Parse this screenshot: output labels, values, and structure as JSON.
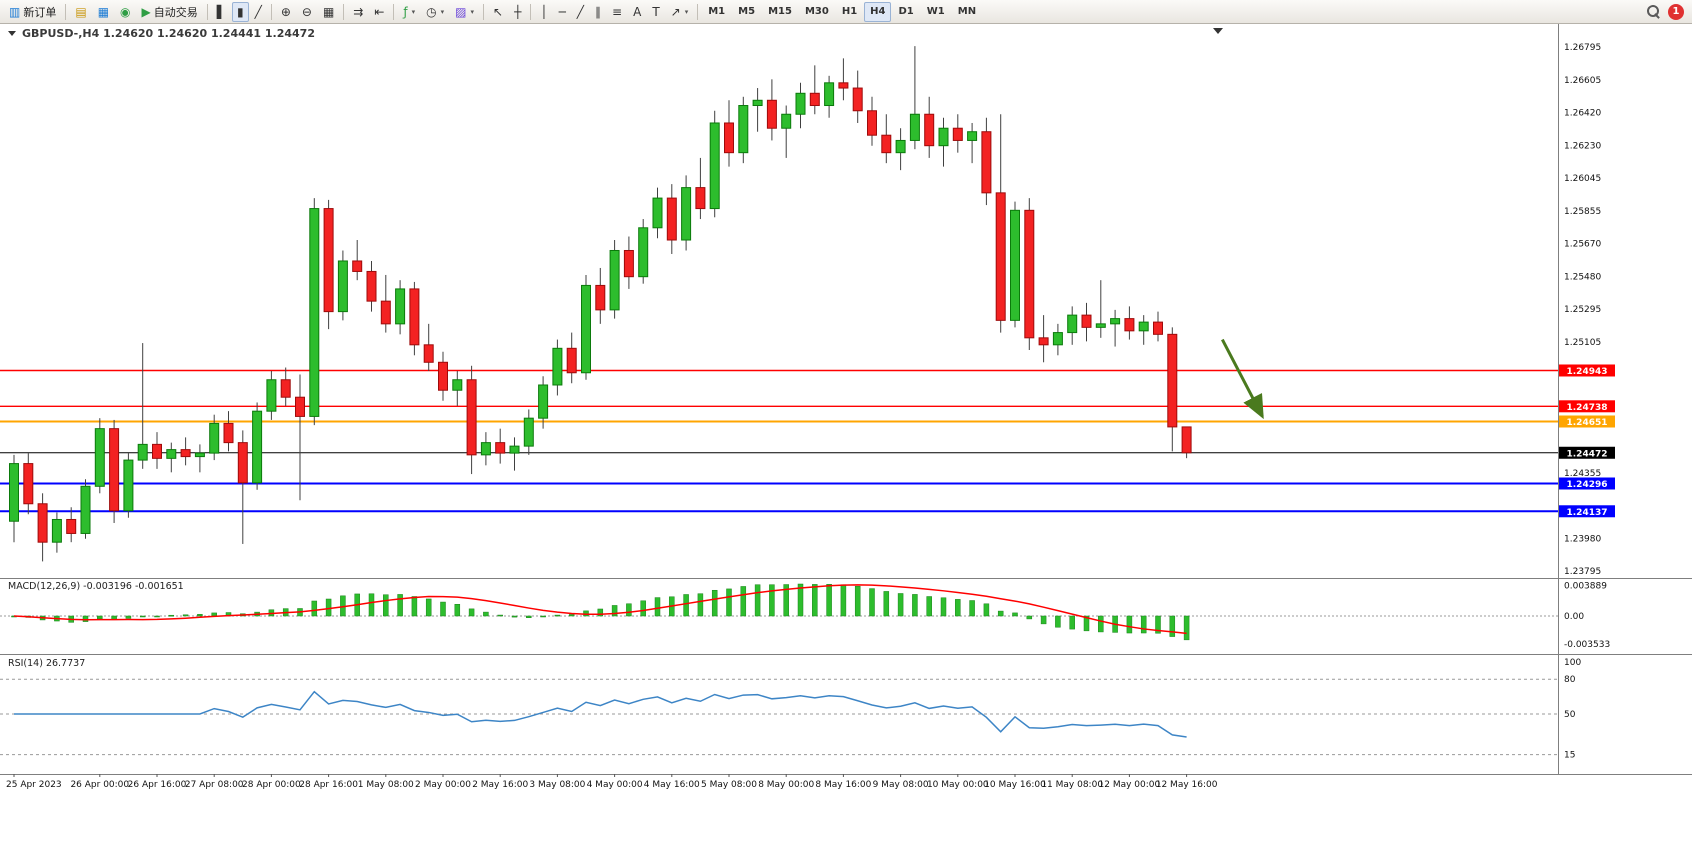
{
  "colors": {
    "bull_fill": "#2dbd2d",
    "bull_stroke": "#0b7a0b",
    "bear_fill": "#f32222",
    "bear_stroke": "#9e0b0b",
    "wick": "#404040",
    "macd_hist": "#2dbd2d",
    "macd_hist_stroke": "#188318",
    "macd_signal": "#ff0000",
    "rsi_line": "#3d85c6",
    "arrow_annotation": "#4a7a1e",
    "axis_text": "#111111",
    "separator": "#7f7f7f"
  },
  "toolbar": {
    "buttons": [
      {
        "name": "new-order",
        "glyph": "▥",
        "glyph_color": "#1a7ad4",
        "label": "新订单"
      },
      {
        "sep": true
      },
      {
        "name": "market-watch",
        "glyph": "▤",
        "glyph_color": "#c8950a"
      },
      {
        "name": "data-window",
        "glyph": "▦",
        "glyph_color": "#1a7ad4"
      },
      {
        "name": "navigator",
        "glyph": "◉",
        "glyph_color": "#2f9e44"
      },
      {
        "name": "autotrading",
        "glyph": "▶",
        "glyph_color": "#2f9e44",
        "label": "自动交易"
      },
      {
        "sep": true
      },
      {
        "name": "bar-chart",
        "glyph": "▌",
        "glyph_color": "#333333"
      },
      {
        "name": "candlestick-chart",
        "glyph": "▮",
        "glyph_color": "#333333",
        "active": true
      },
      {
        "name": "line-chart",
        "glyph": "╱",
        "glyph_color": "#333333"
      },
      {
        "sep": true
      },
      {
        "name": "zoom-in",
        "glyph": "⊕",
        "glyph_color": "#333333"
      },
      {
        "name": "zoom-out",
        "glyph": "⊖",
        "glyph_color": "#333333"
      },
      {
        "name": "tile-windows",
        "glyph": "▦",
        "glyph_color": "#333333"
      },
      {
        "sep": true
      },
      {
        "name": "auto-scroll",
        "glyph": "⇉",
        "glyph_color": "#333333"
      },
      {
        "name": "chart-shift",
        "glyph": "⇤",
        "glyph_color": "#333333"
      },
      {
        "sep": true
      },
      {
        "name": "indicators",
        "glyph": "ƒ",
        "glyph_color": "#2f9e44",
        "dropdown": true
      },
      {
        "name": "periods",
        "glyph": "◷",
        "glyph_color": "#333333",
        "dropdown": true
      },
      {
        "name": "templates",
        "glyph": "▨",
        "glyph_color": "#6741d9",
        "dropdown": true
      },
      {
        "sep": true
      },
      {
        "name": "cursor",
        "glyph": "↖",
        "glyph_color": "#333333"
      },
      {
        "name": "crosshair",
        "glyph": "┼",
        "glyph_color": "#333333"
      },
      {
        "sep": true
      },
      {
        "name": "vertical-line",
        "glyph": "│",
        "glyph_color": "#333333"
      },
      {
        "name": "horizontal-line",
        "glyph": "─",
        "glyph_color": "#333333"
      },
      {
        "name": "trendline",
        "glyph": "╱",
        "glyph_color": "#333333"
      },
      {
        "name": "equidistant-channel",
        "glyph": "∥",
        "glyph_color": "#333333"
      },
      {
        "name": "fibonacci",
        "glyph": "≡",
        "glyph_color": "#333333"
      },
      {
        "name": "text",
        "glyph": "A",
        "glyph_color": "#333333"
      },
      {
        "name": "text-label",
        "glyph": "T",
        "glyph_color": "#333333"
      },
      {
        "name": "arrows",
        "glyph": "↗",
        "glyph_color": "#333333",
        "dropdown": true
      },
      {
        "sep": true
      }
    ],
    "timeframes": [
      "M1",
      "M5",
      "M15",
      "M30",
      "H1",
      "H4",
      "D1",
      "W1",
      "MN"
    ],
    "active_timeframe": "H4",
    "notification_count": "1"
  },
  "chart": {
    "title": "GBPUSD-,H4  1.24620 1.24620 1.24441 1.24472",
    "price_axis_labels": [
      "1.26795",
      "1.26605",
      "1.26420",
      "1.26230",
      "1.26045",
      "1.25855",
      "1.25670",
      "1.25480",
      "1.25295",
      "1.25105",
      "1.24355",
      "1.23980",
      "1.23795"
    ],
    "price_axis_values": [
      1.26795,
      1.26605,
      1.2642,
      1.2623,
      1.26045,
      1.25855,
      1.2567,
      1.2548,
      1.25295,
      1.25105,
      1.24355,
      1.2398,
      1.23795
    ],
    "hlines": [
      {
        "price": 1.24943,
        "label": "1.24943",
        "color": "#ff0000",
        "width": 1.4
      },
      {
        "price": 1.24738,
        "label": "1.24738",
        "color": "#ff0000",
        "width": 1.4
      },
      {
        "price": 1.24651,
        "label": "1.24651",
        "color": "#ffa500",
        "width": 2
      },
      {
        "price": 1.24472,
        "label": "1.24472",
        "color": "#000000",
        "width": 1
      },
      {
        "price": 1.24296,
        "label": "1.24296",
        "color": "#0000ff",
        "width": 2
      },
      {
        "price": 1.24137,
        "label": "1.24137",
        "color": "#0000ff",
        "width": 2
      }
    ],
    "arrow": {
      "from_bar": 84.5,
      "from_price": 1.2512,
      "to_bar": 87.3,
      "to_price": 1.2468
    }
  },
  "macd_panel": {
    "label": "MACD(12,26,9) -0.003196 -0.001651",
    "axis_labels": [
      "0.003889",
      "0.00",
      "-0.003533"
    ],
    "axis_values": [
      0.003889,
      0,
      -0.003533
    ]
  },
  "rsi_panel": {
    "label": "RSI(14) 26.7737",
    "axis_labels": [
      "100",
      "80",
      "50",
      "15"
    ],
    "axis_values": [
      100,
      80,
      50,
      15
    ],
    "levels": [
      80,
      50,
      15
    ]
  },
  "time_axis": {
    "labels": [
      "25 Apr 2023",
      "26 Apr 00:00",
      "26 Apr 16:00",
      "27 Apr 08:00",
      "28 Apr 00:00",
      "28 Apr 16:00",
      "1 May 08:00",
      "2 May 00:00",
      "2 May 16:00",
      "3 May 08:00",
      "4 May 00:00",
      "4 May 16:00",
      "5 May 08:00",
      "8 May 00:00",
      "8 May 16:00",
      "9 May 08:00",
      "10 May 00:00",
      "10 May 16:00",
      "11 May 08:00",
      "12 May 00:00",
      "12 May 16:00"
    ],
    "bar_indices": [
      0,
      6,
      10,
      14,
      18,
      22,
      26,
      30,
      34,
      38,
      42,
      46,
      50,
      54,
      58,
      62,
      66,
      70,
      74,
      78,
      82
    ]
  },
  "chart_data": {
    "type": "candlestick",
    "symbol": "GBPUSD-",
    "timeframe": "H4",
    "last_ohlc": {
      "open": "1.24620",
      "high": "1.24620",
      "low": "1.24441",
      "close": "1.24472"
    },
    "price_range": [
      1.2372,
      1.269
    ],
    "candles": [
      [
        1.2408,
        1.2446,
        1.2396,
        1.2441
      ],
      [
        1.2441,
        1.2447,
        1.2412,
        1.2418
      ],
      [
        1.2418,
        1.2424,
        1.2385,
        1.2396
      ],
      [
        1.2396,
        1.2413,
        1.239,
        1.2409
      ],
      [
        1.2409,
        1.2416,
        1.2396,
        1.2401
      ],
      [
        1.2401,
        1.2432,
        1.2398,
        1.2428
      ],
      [
        1.2428,
        1.2467,
        1.2424,
        1.2461
      ],
      [
        1.2461,
        1.2466,
        1.2407,
        1.2414
      ],
      [
        1.2414,
        1.2447,
        1.241,
        1.2443
      ],
      [
        1.2443,
        1.251,
        1.2438,
        1.2452
      ],
      [
        1.2452,
        1.2459,
        1.2438,
        1.2444
      ],
      [
        1.2444,
        1.2453,
        1.2436,
        1.2449
      ],
      [
        1.2449,
        1.2456,
        1.244,
        1.2445
      ],
      [
        1.2445,
        1.2452,
        1.2436,
        1.2447
      ],
      [
        1.2447,
        1.2469,
        1.2443,
        1.2464
      ],
      [
        1.2464,
        1.2471,
        1.2448,
        1.2453
      ],
      [
        1.2453,
        1.246,
        1.2395,
        1.243
      ],
      [
        1.243,
        1.2476,
        1.2426,
        1.2471
      ],
      [
        1.2471,
        1.2494,
        1.2466,
        1.2489
      ],
      [
        1.2489,
        1.2496,
        1.2474,
        1.2479
      ],
      [
        1.2479,
        1.2492,
        1.242,
        1.2468
      ],
      [
        1.2468,
        1.2593,
        1.2463,
        1.2587
      ],
      [
        1.2587,
        1.2592,
        1.2518,
        1.2528
      ],
      [
        1.2528,
        1.2563,
        1.2523,
        1.2557
      ],
      [
        1.2557,
        1.2569,
        1.2546,
        1.2551
      ],
      [
        1.2551,
        1.2557,
        1.2528,
        1.2534
      ],
      [
        1.2534,
        1.2549,
        1.2516,
        1.2521
      ],
      [
        1.2521,
        1.2546,
        1.2515,
        1.2541
      ],
      [
        1.2541,
        1.2545,
        1.2503,
        1.2509
      ],
      [
        1.2509,
        1.2521,
        1.2494,
        1.2499
      ],
      [
        1.2499,
        1.2505,
        1.2477,
        1.2483
      ],
      [
        1.2483,
        1.2494,
        1.2474,
        1.2489
      ],
      [
        1.2489,
        1.2497,
        1.2435,
        1.2446
      ],
      [
        1.2446,
        1.2459,
        1.244,
        1.2453
      ],
      [
        1.2453,
        1.2461,
        1.2441,
        1.2447
      ],
      [
        1.2447,
        1.2456,
        1.2437,
        1.2451
      ],
      [
        1.2451,
        1.2472,
        1.2446,
        1.2467
      ],
      [
        1.2467,
        1.2491,
        1.2461,
        1.2486
      ],
      [
        1.2486,
        1.2512,
        1.248,
        1.2507
      ],
      [
        1.2507,
        1.2516,
        1.2487,
        1.2493
      ],
      [
        1.2493,
        1.2549,
        1.2489,
        1.2543
      ],
      [
        1.2543,
        1.2553,
        1.2521,
        1.2529
      ],
      [
        1.2529,
        1.2569,
        1.2524,
        1.2563
      ],
      [
        1.2563,
        1.2571,
        1.2541,
        1.2548
      ],
      [
        1.2548,
        1.2581,
        1.2544,
        1.2576
      ],
      [
        1.2576,
        1.2599,
        1.257,
        1.2593
      ],
      [
        1.2593,
        1.2601,
        1.2561,
        1.2569
      ],
      [
        1.2569,
        1.2606,
        1.2563,
        1.2599
      ],
      [
        1.2599,
        1.2616,
        1.2581,
        1.2587
      ],
      [
        1.2587,
        1.2643,
        1.2582,
        1.2636
      ],
      [
        1.2636,
        1.2649,
        1.2611,
        1.2619
      ],
      [
        1.2619,
        1.2651,
        1.2613,
        1.2646
      ],
      [
        1.2646,
        1.2656,
        1.2631,
        1.2649
      ],
      [
        1.2649,
        1.2661,
        1.2626,
        1.2633
      ],
      [
        1.2633,
        1.2646,
        1.2616,
        1.2641
      ],
      [
        1.2641,
        1.2659,
        1.2633,
        1.2653
      ],
      [
        1.2653,
        1.2669,
        1.2641,
        1.2646
      ],
      [
        1.2646,
        1.2663,
        1.2639,
        1.2659
      ],
      [
        1.2659,
        1.2673,
        1.2649,
        1.2656
      ],
      [
        1.2656,
        1.2666,
        1.2636,
        1.2643
      ],
      [
        1.2643,
        1.2651,
        1.2623,
        1.2629
      ],
      [
        1.2629,
        1.2641,
        1.2613,
        1.2619
      ],
      [
        1.2619,
        1.2633,
        1.2609,
        1.2626
      ],
      [
        1.2626,
        1.268,
        1.2621,
        1.2641
      ],
      [
        1.2641,
        1.2651,
        1.2616,
        1.2623
      ],
      [
        1.2623,
        1.2639,
        1.2611,
        1.2633
      ],
      [
        1.2633,
        1.2641,
        1.2619,
        1.2626
      ],
      [
        1.2626,
        1.2636,
        1.2613,
        1.2631
      ],
      [
        1.2631,
        1.2639,
        1.2589,
        1.2596
      ],
      [
        1.2596,
        1.2641,
        1.2516,
        1.2523
      ],
      [
        1.2523,
        1.2591,
        1.2519,
        1.2586
      ],
      [
        1.2586,
        1.2593,
        1.2506,
        1.2513
      ],
      [
        1.2513,
        1.2526,
        1.2499,
        1.2509
      ],
      [
        1.2509,
        1.2521,
        1.2503,
        1.2516
      ],
      [
        1.2516,
        1.2531,
        1.2509,
        1.2526
      ],
      [
        1.2526,
        1.2533,
        1.2511,
        1.2519
      ],
      [
        1.2519,
        1.2546,
        1.2513,
        1.2521
      ],
      [
        1.2521,
        1.2529,
        1.2508,
        1.2524
      ],
      [
        1.2524,
        1.2531,
        1.2512,
        1.2517
      ],
      [
        1.2517,
        1.2526,
        1.2509,
        1.2522
      ],
      [
        1.2522,
        1.2528,
        1.2511,
        1.2515
      ],
      [
        1.2515,
        1.2519,
        1.2448,
        1.2462
      ],
      [
        1.2462,
        1.2462,
        1.24441,
        1.24472
      ]
    ]
  }
}
